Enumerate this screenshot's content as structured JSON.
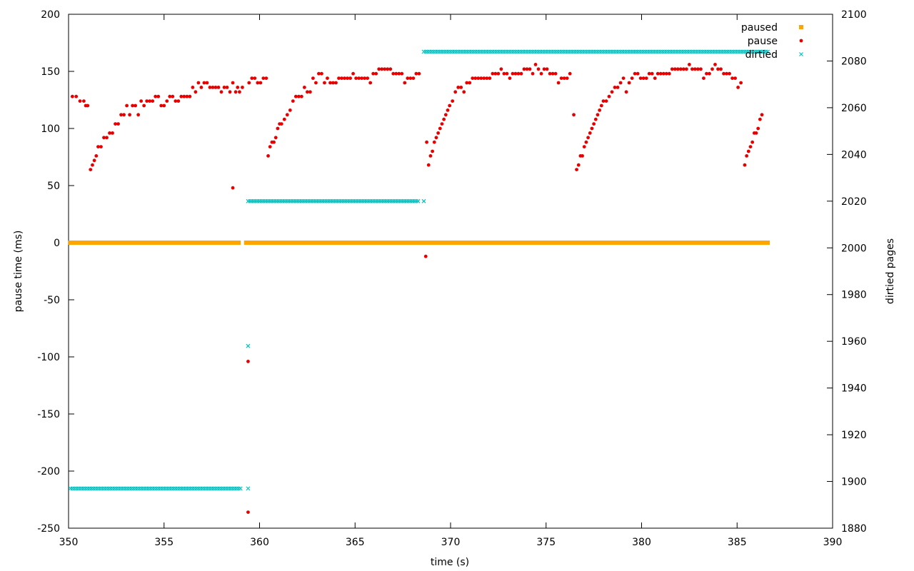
{
  "chart_data": {
    "type": "scatter",
    "xlabel": "time (s)",
    "ylabel": "pause time (ms)",
    "y2label": "dirtied pages",
    "xlim": [
      350,
      390
    ],
    "ylim": [
      -250,
      200
    ],
    "y2lim": [
      1880,
      2100
    ],
    "x_ticks": [
      350,
      355,
      360,
      365,
      370,
      375,
      380,
      385,
      390
    ],
    "y_ticks": [
      -250,
      -200,
      -150,
      -100,
      -50,
      0,
      50,
      100,
      150,
      200
    ],
    "y2_ticks": [
      1880,
      1900,
      1920,
      1940,
      1960,
      1980,
      2000,
      2020,
      2040,
      2060,
      2080,
      2100
    ],
    "grid": false,
    "legend_position": "top-right",
    "series": [
      {
        "name": "paused",
        "axis": "y",
        "marker": "square",
        "color": "#ffa500",
        "segments": [
          {
            "x_start": 350.1,
            "x_end": 358.9,
            "y": 0,
            "step": 0.1
          },
          {
            "x_start": 359.3,
            "x_end": 368.5,
            "y": 0,
            "step": 0.1
          },
          {
            "x_start": 368.6,
            "x_end": 386.6,
            "y": 0,
            "step": 0.1
          }
        ]
      },
      {
        "name": "pause",
        "axis": "y",
        "marker": "dot",
        "color": "#e60000",
        "points": [
          [
            350.2,
            128
          ],
          [
            350.4,
            128
          ],
          [
            350.6,
            124
          ],
          [
            350.8,
            124
          ],
          [
            350.9,
            120
          ],
          [
            351.0,
            120
          ],
          [
            351.15,
            64
          ],
          [
            351.25,
            68
          ],
          [
            351.35,
            72
          ],
          [
            351.45,
            76
          ],
          [
            351.55,
            84
          ],
          [
            351.7,
            84
          ],
          [
            351.85,
            92
          ],
          [
            352.0,
            92
          ],
          [
            352.15,
            96
          ],
          [
            352.3,
            96
          ],
          [
            352.45,
            104
          ],
          [
            352.6,
            104
          ],
          [
            352.75,
            112
          ],
          [
            352.9,
            112
          ],
          [
            353.05,
            120
          ],
          [
            353.2,
            112
          ],
          [
            353.35,
            120
          ],
          [
            353.5,
            120
          ],
          [
            353.65,
            112
          ],
          [
            353.8,
            124
          ],
          [
            353.95,
            120
          ],
          [
            354.1,
            124
          ],
          [
            354.25,
            124
          ],
          [
            354.4,
            124
          ],
          [
            354.55,
            128
          ],
          [
            354.7,
            128
          ],
          [
            354.85,
            120
          ],
          [
            355.0,
            120
          ],
          [
            355.15,
            124
          ],
          [
            355.3,
            128
          ],
          [
            355.45,
            128
          ],
          [
            355.6,
            124
          ],
          [
            355.75,
            124
          ],
          [
            355.9,
            128
          ],
          [
            356.05,
            128
          ],
          [
            356.2,
            128
          ],
          [
            356.35,
            128
          ],
          [
            356.5,
            136
          ],
          [
            356.65,
            132
          ],
          [
            356.8,
            140
          ],
          [
            356.95,
            136
          ],
          [
            357.1,
            140
          ],
          [
            357.25,
            140
          ],
          [
            357.4,
            136
          ],
          [
            357.55,
            136
          ],
          [
            357.7,
            136
          ],
          [
            357.85,
            136
          ],
          [
            358.0,
            132
          ],
          [
            358.15,
            136
          ],
          [
            358.3,
            136
          ],
          [
            358.45,
            132
          ],
          [
            358.6,
            140
          ],
          [
            358.75,
            132
          ],
          [
            358.6,
            48
          ],
          [
            358.85,
            136
          ],
          [
            358.95,
            132
          ],
          [
            359.1,
            136
          ],
          [
            359.4,
            -236
          ],
          [
            359.4,
            -104
          ],
          [
            359.45,
            140
          ],
          [
            359.6,
            144
          ],
          [
            359.75,
            144
          ],
          [
            359.9,
            140
          ],
          [
            360.05,
            140
          ],
          [
            360.2,
            144
          ],
          [
            360.35,
            144
          ],
          [
            360.45,
            76
          ],
          [
            360.55,
            84
          ],
          [
            360.65,
            88
          ],
          [
            360.75,
            88
          ],
          [
            360.85,
            92
          ],
          [
            360.95,
            100
          ],
          [
            361.05,
            104
          ],
          [
            361.15,
            104
          ],
          [
            361.3,
            108
          ],
          [
            361.45,
            112
          ],
          [
            361.6,
            116
          ],
          [
            361.75,
            124
          ],
          [
            361.9,
            128
          ],
          [
            362.05,
            128
          ],
          [
            362.2,
            128
          ],
          [
            362.35,
            136
          ],
          [
            362.5,
            132
          ],
          [
            362.65,
            132
          ],
          [
            362.8,
            144
          ],
          [
            362.95,
            140
          ],
          [
            363.1,
            148
          ],
          [
            363.25,
            148
          ],
          [
            363.4,
            140
          ],
          [
            363.55,
            144
          ],
          [
            363.7,
            140
          ],
          [
            363.85,
            140
          ],
          [
            364.0,
            140
          ],
          [
            364.15,
            144
          ],
          [
            364.3,
            144
          ],
          [
            364.45,
            144
          ],
          [
            364.6,
            144
          ],
          [
            364.75,
            144
          ],
          [
            364.9,
            148
          ],
          [
            365.05,
            144
          ],
          [
            365.2,
            144
          ],
          [
            365.35,
            144
          ],
          [
            365.5,
            144
          ],
          [
            365.65,
            144
          ],
          [
            365.8,
            140
          ],
          [
            365.95,
            148
          ],
          [
            366.1,
            148
          ],
          [
            366.25,
            152
          ],
          [
            366.4,
            152
          ],
          [
            366.55,
            152
          ],
          [
            366.7,
            152
          ],
          [
            366.85,
            152
          ],
          [
            367.0,
            148
          ],
          [
            367.15,
            148
          ],
          [
            367.3,
            148
          ],
          [
            367.45,
            148
          ],
          [
            367.6,
            140
          ],
          [
            367.75,
            144
          ],
          [
            367.9,
            144
          ],
          [
            368.05,
            144
          ],
          [
            368.2,
            148
          ],
          [
            368.35,
            148
          ],
          [
            368.7,
            -12
          ],
          [
            368.75,
            88
          ],
          [
            368.85,
            68
          ],
          [
            368.95,
            76
          ],
          [
            369.05,
            80
          ],
          [
            369.15,
            88
          ],
          [
            369.25,
            92
          ],
          [
            369.35,
            96
          ],
          [
            369.45,
            100
          ],
          [
            369.55,
            104
          ],
          [
            369.65,
            108
          ],
          [
            369.75,
            112
          ],
          [
            369.85,
            116
          ],
          [
            369.95,
            120
          ],
          [
            370.1,
            124
          ],
          [
            370.25,
            132
          ],
          [
            370.4,
            136
          ],
          [
            370.55,
            136
          ],
          [
            370.7,
            132
          ],
          [
            370.85,
            140
          ],
          [
            371.0,
            140
          ],
          [
            371.15,
            144
          ],
          [
            371.3,
            144
          ],
          [
            371.45,
            144
          ],
          [
            371.6,
            144
          ],
          [
            371.75,
            144
          ],
          [
            371.9,
            144
          ],
          [
            372.05,
            144
          ],
          [
            372.2,
            148
          ],
          [
            372.35,
            148
          ],
          [
            372.5,
            148
          ],
          [
            372.65,
            152
          ],
          [
            372.8,
            148
          ],
          [
            372.95,
            148
          ],
          [
            373.1,
            144
          ],
          [
            373.25,
            148
          ],
          [
            373.4,
            148
          ],
          [
            373.55,
            148
          ],
          [
            373.7,
            148
          ],
          [
            373.85,
            152
          ],
          [
            374.0,
            152
          ],
          [
            374.15,
            152
          ],
          [
            374.3,
            148
          ],
          [
            374.45,
            156
          ],
          [
            374.6,
            152
          ],
          [
            374.75,
            148
          ],
          [
            374.9,
            152
          ],
          [
            375.05,
            152
          ],
          [
            375.2,
            148
          ],
          [
            375.35,
            148
          ],
          [
            375.5,
            148
          ],
          [
            375.65,
            140
          ],
          [
            375.8,
            144
          ],
          [
            375.95,
            144
          ],
          [
            376.1,
            144
          ],
          [
            376.25,
            148
          ],
          [
            376.45,
            112
          ],
          [
            376.6,
            64
          ],
          [
            376.7,
            68
          ],
          [
            376.8,
            76
          ],
          [
            376.9,
            76
          ],
          [
            377.0,
            84
          ],
          [
            377.1,
            88
          ],
          [
            377.2,
            92
          ],
          [
            377.3,
            96
          ],
          [
            377.4,
            100
          ],
          [
            377.5,
            104
          ],
          [
            377.6,
            108
          ],
          [
            377.7,
            112
          ],
          [
            377.8,
            116
          ],
          [
            377.9,
            120
          ],
          [
            378.0,
            124
          ],
          [
            378.15,
            124
          ],
          [
            378.3,
            128
          ],
          [
            378.45,
            132
          ],
          [
            378.6,
            136
          ],
          [
            378.75,
            136
          ],
          [
            378.9,
            140
          ],
          [
            379.05,
            144
          ],
          [
            379.2,
            132
          ],
          [
            379.35,
            140
          ],
          [
            379.5,
            144
          ],
          [
            379.65,
            148
          ],
          [
            379.8,
            148
          ],
          [
            379.95,
            144
          ],
          [
            380.1,
            144
          ],
          [
            380.25,
            144
          ],
          [
            380.4,
            148
          ],
          [
            380.55,
            148
          ],
          [
            380.7,
            144
          ],
          [
            380.85,
            148
          ],
          [
            381.0,
            148
          ],
          [
            381.15,
            148
          ],
          [
            381.3,
            148
          ],
          [
            381.45,
            148
          ],
          [
            381.6,
            152
          ],
          [
            381.75,
            152
          ],
          [
            381.9,
            152
          ],
          [
            382.05,
            152
          ],
          [
            382.2,
            152
          ],
          [
            382.35,
            152
          ],
          [
            382.5,
            156
          ],
          [
            382.65,
            152
          ],
          [
            382.8,
            152
          ],
          [
            382.95,
            152
          ],
          [
            383.1,
            152
          ],
          [
            383.25,
            144
          ],
          [
            383.4,
            148
          ],
          [
            383.55,
            148
          ],
          [
            383.7,
            152
          ],
          [
            383.85,
            156
          ],
          [
            384.0,
            152
          ],
          [
            384.15,
            152
          ],
          [
            384.3,
            148
          ],
          [
            384.45,
            148
          ],
          [
            384.6,
            148
          ],
          [
            384.75,
            144
          ],
          [
            384.9,
            144
          ],
          [
            385.05,
            136
          ],
          [
            385.2,
            140
          ],
          [
            385.4,
            68
          ],
          [
            385.5,
            76
          ],
          [
            385.6,
            80
          ],
          [
            385.7,
            84
          ],
          [
            385.8,
            88
          ],
          [
            385.9,
            96
          ],
          [
            386.0,
            96
          ],
          [
            386.1,
            100
          ],
          [
            386.2,
            108
          ],
          [
            386.3,
            112
          ]
        ]
      },
      {
        "name": "dirtied",
        "axis": "y2",
        "marker": "cross",
        "color": "#00bfbf",
        "segments": [
          {
            "x_start": 350.1,
            "x_end": 359.0,
            "y": 1897,
            "step": 0.1
          },
          {
            "x_start": 359.4,
            "x_end": 368.3,
            "y": 2020,
            "step": 0.1
          },
          {
            "x_start": 368.6,
            "x_end": 386.6,
            "y": 2084,
            "step": 0.1
          }
        ],
        "points": [
          [
            359.4,
            1958
          ],
          [
            359.4,
            1897
          ],
          [
            368.6,
            2020
          ]
        ]
      }
    ]
  }
}
